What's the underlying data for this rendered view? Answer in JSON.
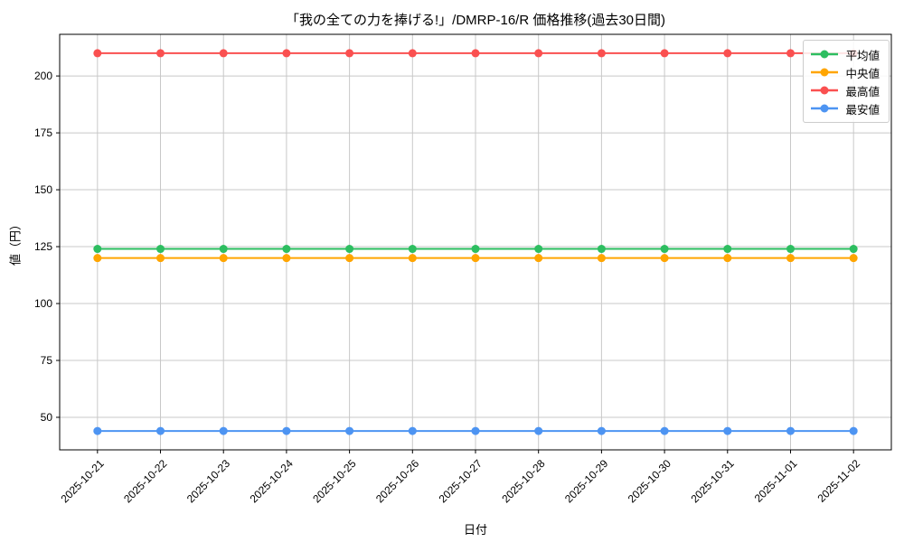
{
  "title": "「我の全ての力を捧げる!」/DMRP-16/R 価格推移(過去30日間)",
  "chart_data": {
    "type": "line",
    "x": [
      "2025-10-21",
      "2025-10-22",
      "2025-10-23",
      "2025-10-24",
      "2025-10-25",
      "2025-10-26",
      "2025-10-27",
      "2025-10-28",
      "2025-10-29",
      "2025-10-30",
      "2025-10-31",
      "2025-11-01",
      "2025-11-02"
    ],
    "series": [
      {
        "name": "平均値",
        "color": "#2dbe60",
        "values": [
          124,
          124,
          124,
          124,
          124,
          124,
          124,
          124,
          124,
          124,
          124,
          124,
          124
        ]
      },
      {
        "name": "中央値",
        "color": "#ffa500",
        "values": [
          120,
          120,
          120,
          120,
          120,
          120,
          120,
          120,
          120,
          120,
          120,
          120,
          120
        ]
      },
      {
        "name": "最高値",
        "color": "#fa5050",
        "values": [
          210,
          210,
          210,
          210,
          210,
          210,
          210,
          210,
          210,
          210,
          210,
          210,
          210
        ]
      },
      {
        "name": "最安値",
        "color": "#4d94f2",
        "values": [
          44,
          44,
          44,
          44,
          44,
          44,
          44,
          44,
          44,
          44,
          44,
          44,
          44
        ]
      }
    ],
    "xlabel": "日付",
    "ylabel": "値（円）",
    "yticks": [
      50,
      75,
      100,
      125,
      150,
      175,
      200
    ],
    "ylim": [
      35.7,
      218.3
    ],
    "grid": true,
    "grid_color": "#c8c8c8",
    "spine_color": "#000000",
    "legend_position": "top-right",
    "marker": "circle",
    "marker_radius": 4.5,
    "line_width": 2
  }
}
